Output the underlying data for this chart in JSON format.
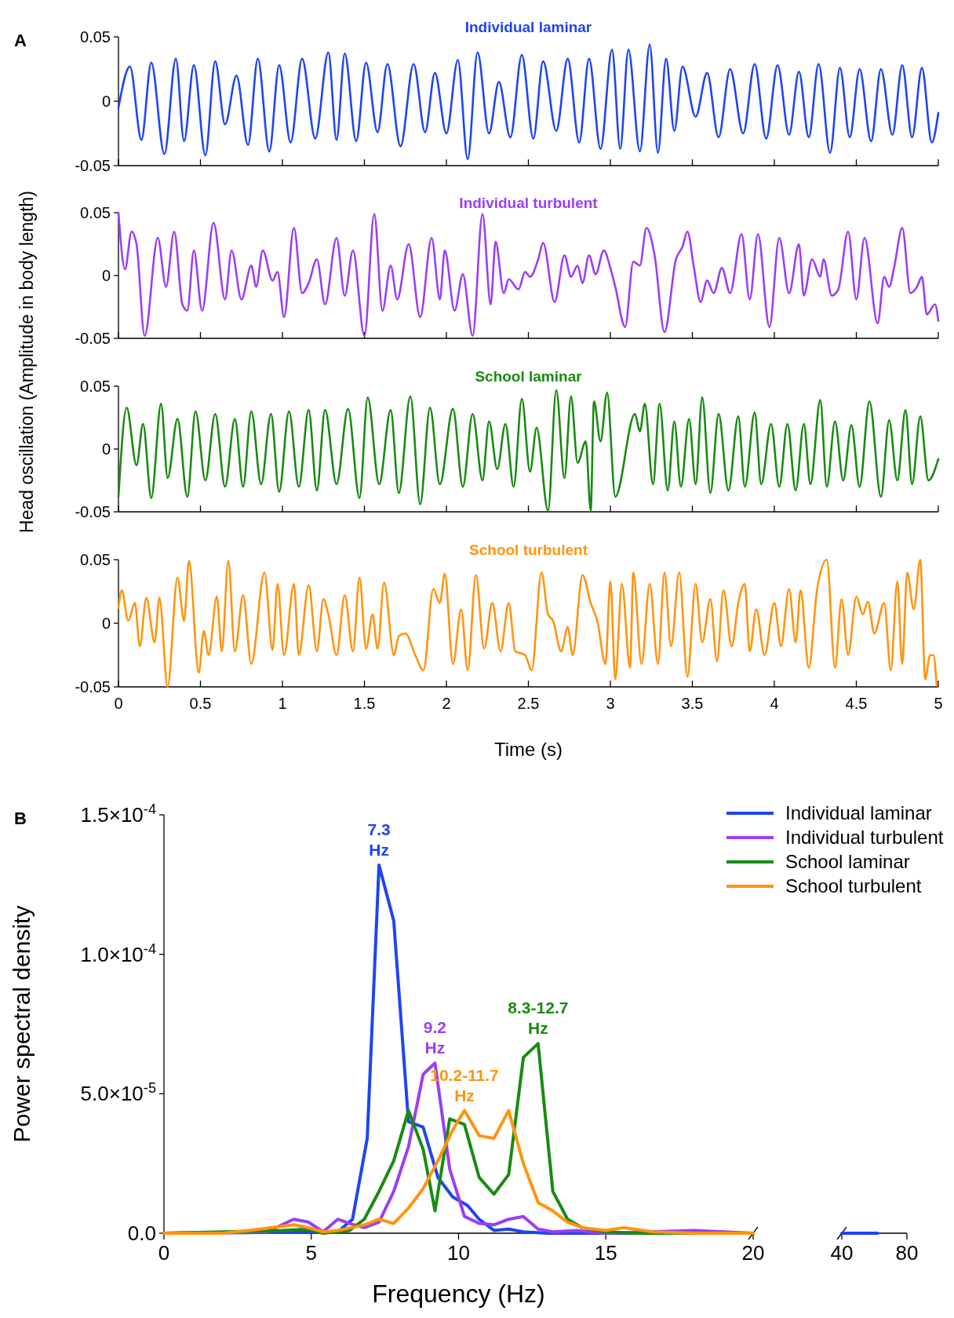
{
  "chart_data": [
    {
      "type": "line",
      "title": "Individual laminar",
      "ylabel": "Head oscillation (Amplitude in body length)",
      "annotations": [
        "A"
      ],
      "xlim": [
        0,
        5
      ],
      "xticks": [
        0,
        0.5,
        1,
        1.5,
        2,
        2.5,
        3,
        3.5,
        4,
        4.5,
        5
      ],
      "ylim": [
        -0.05,
        0.05
      ],
      "yticks": [
        -0.05,
        0,
        0.05
      ],
      "tick_labels": "y",
      "series": [
        {
          "color": "#1f45f0",
          "x": [
            0,
            0.07,
            0.14,
            0.2,
            0.28,
            0.35,
            0.4,
            0.46,
            0.53,
            0.59,
            0.65,
            0.72,
            0.79,
            0.85,
            0.92,
            0.98,
            1.05,
            1.12,
            1.2,
            1.28,
            1.33,
            1.38,
            1.45,
            1.51,
            1.58,
            1.64,
            1.72,
            1.8,
            1.87,
            1.93,
            2.0,
            2.07,
            2.13,
            2.19,
            2.26,
            2.32,
            2.39,
            2.46,
            2.53,
            2.59,
            2.67,
            2.74,
            2.81,
            2.87,
            2.94,
            3.01,
            3.06,
            3.11,
            3.18,
            3.24,
            3.29,
            3.34,
            3.39,
            3.44,
            3.52,
            3.59,
            3.66,
            3.73,
            3.81,
            3.88,
            3.95,
            4.02,
            4.09,
            4.15,
            4.21,
            4.27,
            4.34,
            4.4,
            4.46,
            4.52,
            4.59,
            4.65,
            4.72,
            4.78,
            4.84,
            4.9,
            4.96,
            5.0
          ],
          "values": [
            -0.005,
            0.027,
            -0.03,
            0.03,
            -0.041,
            0.033,
            -0.031,
            0.028,
            -0.042,
            0.031,
            -0.018,
            0.02,
            -0.034,
            0.033,
            -0.039,
            0.028,
            -0.032,
            0.033,
            -0.029,
            0.038,
            -0.03,
            0.037,
            -0.031,
            0.03,
            -0.024,
            0.029,
            -0.035,
            0.029,
            -0.024,
            0.022,
            -0.025,
            0.032,
            -0.045,
            0.038,
            -0.025,
            0.015,
            -0.028,
            0.036,
            -0.029,
            0.031,
            -0.023,
            0.033,
            -0.032,
            0.033,
            -0.037,
            0.04,
            -0.037,
            0.04,
            -0.039,
            0.044,
            -0.04,
            0.033,
            -0.023,
            0.027,
            -0.012,
            0.022,
            -0.028,
            0.025,
            -0.025,
            0.029,
            -0.029,
            0.028,
            -0.026,
            0.023,
            -0.028,
            0.029,
            -0.04,
            0.026,
            -0.028,
            0.025,
            -0.031,
            0.025,
            -0.026,
            0.028,
            -0.028,
            0.026,
            -0.032,
            -0.009
          ]
        }
      ]
    },
    {
      "type": "line",
      "title": "Individual turbulent",
      "xlim": [
        0,
        5
      ],
      "xticks": [
        0,
        0.5,
        1,
        1.5,
        2,
        2.5,
        3,
        3.5,
        4,
        4.5,
        5
      ],
      "ylim": [
        -0.05,
        0.05
      ],
      "yticks": [
        -0.05,
        0,
        0.05
      ],
      "tick_labels": "y",
      "series": [
        {
          "color": "#9b3ef5",
          "x": [
            0,
            0.04,
            0.08,
            0.11,
            0.16,
            0.24,
            0.29,
            0.34,
            0.39,
            0.42,
            0.46,
            0.51,
            0.58,
            0.65,
            0.69,
            0.75,
            0.81,
            0.84,
            0.88,
            0.94,
            0.97,
            1.01,
            1.07,
            1.12,
            1.16,
            1.21,
            1.26,
            1.33,
            1.38,
            1.43,
            1.5,
            1.56,
            1.61,
            1.66,
            1.7,
            1.77,
            1.84,
            1.91,
            1.96,
            1.99,
            2.05,
            2.1,
            2.16,
            2.22,
            2.27,
            2.3,
            2.35,
            2.38,
            2.44,
            2.48,
            2.51,
            2.56,
            2.59,
            2.66,
            2.72,
            2.76,
            2.8,
            2.83,
            2.87,
            2.91,
            2.96,
            3.0,
            3.03,
            3.09,
            3.14,
            3.18,
            3.22,
            3.27,
            3.33,
            3.4,
            3.44,
            3.47,
            3.51,
            3.55,
            3.59,
            3.63,
            3.68,
            3.73,
            3.8,
            3.85,
            3.9,
            3.97,
            4.03,
            4.09,
            4.15,
            4.18,
            4.23,
            4.28,
            4.3,
            4.35,
            4.39,
            4.45,
            4.5,
            4.55,
            4.63,
            4.67,
            4.7,
            4.73,
            4.78,
            4.83,
            4.87,
            4.9,
            4.93,
            4.98,
            5.0
          ],
          "values": [
            0.05,
            0.005,
            0.035,
            0.025,
            -0.048,
            0.03,
            -0.009,
            0.035,
            -0.023,
            -0.028,
            0.02,
            -0.028,
            0.042,
            -0.019,
            0.02,
            -0.019,
            0.008,
            -0.009,
            0.02,
            -0.004,
            0.003,
            -0.033,
            0.038,
            -0.014,
            -0.006,
            0.013,
            -0.023,
            0.03,
            -0.016,
            0.02,
            -0.048,
            0.049,
            -0.028,
            0.008,
            -0.019,
            0.025,
            -0.033,
            0.03,
            -0.019,
            0.02,
            -0.028,
            0.001,
            -0.048,
            0.049,
            -0.023,
            0.027,
            -0.014,
            -0.003,
            -0.011,
            0.003,
            -0.001,
            0.013,
            0.026,
            -0.021,
            0.016,
            -0.001,
            0.008,
            -0.006,
            0.016,
            0.001,
            0.02,
            0.006,
            -0.009,
            -0.041,
            0.011,
            0.008,
            0.038,
            0.016,
            -0.045,
            0.013,
            0.023,
            0.035,
            0.006,
            -0.021,
            -0.004,
            -0.014,
            0.006,
            -0.014,
            0.033,
            -0.019,
            0.033,
            -0.041,
            0.03,
            -0.014,
            0.025,
            -0.016,
            0.013,
            -0.001,
            0.013,
            -0.016,
            -0.011,
            0.035,
            -0.019,
            0.03,
            -0.038,
            -0.001,
            -0.009,
            0.006,
            0.038,
            -0.014,
            -0.009,
            -0.001,
            -0.031,
            -0.023,
            -0.036
          ]
        }
      ]
    },
    {
      "type": "line",
      "title": "School laminar",
      "xlim": [
        0,
        5
      ],
      "xticks": [
        0,
        0.5,
        1,
        1.5,
        2,
        2.5,
        3,
        3.5,
        4,
        4.5,
        5
      ],
      "ylim": [
        -0.05,
        0.05
      ],
      "yticks": [
        -0.05,
        0,
        0.05
      ],
      "tick_labels": "y",
      "series": [
        {
          "color": "#1a8a12",
          "x": [
            0,
            0.05,
            0.11,
            0.15,
            0.2,
            0.26,
            0.3,
            0.36,
            0.42,
            0.47,
            0.53,
            0.59,
            0.65,
            0.71,
            0.76,
            0.81,
            0.87,
            0.93,
            0.98,
            1.04,
            1.1,
            1.16,
            1.21,
            1.26,
            1.33,
            1.4,
            1.47,
            1.52,
            1.59,
            1.66,
            1.71,
            1.78,
            1.84,
            1.9,
            1.96,
            2.04,
            2.1,
            2.16,
            2.22,
            2.26,
            2.31,
            2.36,
            2.41,
            2.46,
            2.51,
            2.55,
            2.62,
            2.67,
            2.72,
            2.76,
            2.8,
            2.85,
            2.88,
            2.9,
            2.94,
            2.98,
            3.03,
            3.15,
            3.18,
            3.21,
            3.26,
            3.3,
            3.35,
            3.39,
            3.43,
            3.48,
            3.52,
            3.56,
            3.61,
            3.66,
            3.72,
            3.78,
            3.82,
            3.88,
            3.92,
            3.98,
            4.03,
            4.08,
            4.13,
            4.18,
            4.22,
            4.28,
            4.32,
            4.37,
            4.42,
            4.47,
            4.52,
            4.58,
            4.65,
            4.7,
            4.75,
            4.8,
            4.84,
            4.89,
            4.94,
            5.0
          ],
          "values": [
            -0.038,
            0.033,
            -0.013,
            0.02,
            -0.039,
            0.036,
            -0.023,
            0.024,
            -0.038,
            0.03,
            -0.025,
            0.028,
            -0.03,
            0.024,
            -0.03,
            0.03,
            -0.028,
            0.028,
            -0.034,
            0.03,
            -0.03,
            0.031,
            -0.033,
            0.031,
            -0.028,
            0.032,
            -0.039,
            0.041,
            -0.028,
            0.031,
            -0.035,
            0.042,
            -0.044,
            0.033,
            -0.028,
            0.032,
            -0.03,
            0.028,
            -0.025,
            0.022,
            -0.016,
            0.02,
            -0.03,
            0.04,
            -0.018,
            0.017,
            -0.049,
            0.047,
            -0.023,
            0.042,
            -0.011,
            0.006,
            -0.049,
            0.038,
            0.006,
            0.045,
            -0.038,
            0.028,
            0.014,
            0.036,
            -0.028,
            0.036,
            -0.033,
            0.022,
            -0.03,
            0.024,
            -0.028,
            0.041,
            -0.035,
            0.028,
            -0.033,
            0.026,
            -0.03,
            0.029,
            -0.028,
            0.02,
            -0.03,
            0.02,
            -0.033,
            0.02,
            -0.028,
            0.039,
            -0.03,
            0.022,
            -0.025,
            0.019,
            -0.03,
            0.038,
            -0.038,
            0.023,
            -0.025,
            0.031,
            -0.028,
            0.026,
            -0.025,
            -0.008
          ]
        }
      ]
    },
    {
      "type": "line",
      "title": "School turbulent",
      "xlabel": "Time (s)",
      "xlim": [
        0,
        5
      ],
      "xticks": [
        0,
        0.5,
        1,
        1.5,
        2,
        2.5,
        3,
        3.5,
        4,
        4.5,
        5
      ],
      "ylim": [
        -0.05,
        0.05
      ],
      "yticks": [
        -0.05,
        0,
        0.05
      ],
      "series": [
        {
          "color": "#ff9410",
          "x": [
            0,
            0.02,
            0.06,
            0.1,
            0.13,
            0.17,
            0.22,
            0.25,
            0.3,
            0.36,
            0.4,
            0.43,
            0.49,
            0.52,
            0.55,
            0.6,
            0.63,
            0.67,
            0.71,
            0.76,
            0.81,
            0.89,
            0.94,
            0.97,
            1.01,
            1.07,
            1.1,
            1.16,
            1.21,
            1.25,
            1.28,
            1.33,
            1.38,
            1.43,
            1.47,
            1.51,
            1.55,
            1.58,
            1.62,
            1.68,
            1.71,
            1.75,
            1.81,
            1.86,
            1.92,
            1.96,
            1.99,
            2.04,
            2.09,
            2.13,
            2.18,
            2.23,
            2.28,
            2.33,
            2.38,
            2.42,
            2.48,
            2.52,
            2.58,
            2.62,
            2.65,
            2.7,
            2.74,
            2.77,
            2.83,
            2.88,
            2.92,
            2.97,
            3.0,
            3.03,
            3.07,
            3.12,
            3.14,
            3.19,
            3.24,
            3.29,
            3.33,
            3.37,
            3.42,
            3.47,
            3.52,
            3.56,
            3.61,
            3.65,
            3.69,
            3.74,
            3.78,
            3.82,
            3.85,
            3.89,
            3.94,
            4.0,
            4.04,
            4.09,
            4.13,
            4.16,
            4.21,
            4.26,
            4.32,
            4.37,
            4.41,
            4.45,
            4.5,
            4.54,
            4.57,
            4.61,
            4.67,
            4.71,
            4.75,
            4.78,
            4.81,
            4.85,
            4.89,
            4.92,
            4.95,
            4.97,
            4.99
          ],
          "values": [
            0.012,
            0.026,
            0.002,
            0.016,
            -0.018,
            0.02,
            -0.015,
            0.02,
            -0.05,
            0.036,
            0.002,
            0.049,
            -0.039,
            -0.006,
            -0.025,
            0.021,
            -0.022,
            0.049,
            -0.022,
            0.022,
            -0.032,
            0.04,
            -0.021,
            0.031,
            -0.025,
            0.031,
            -0.025,
            0.03,
            -0.022,
            0.019,
            0.007,
            -0.025,
            0.022,
            -0.022,
            0.036,
            -0.02,
            0.007,
            -0.02,
            0.032,
            -0.025,
            -0.01,
            -0.008,
            -0.025,
            -0.037,
            0.027,
            0.016,
            0.039,
            -0.032,
            0.011,
            -0.037,
            0.038,
            -0.02,
            0.016,
            -0.022,
            0.016,
            -0.022,
            -0.025,
            -0.037,
            0.04,
            0.007,
            0.002,
            -0.022,
            -0.003,
            -0.025,
            0.038,
            0.016,
            0.002,
            -0.032,
            0.033,
            -0.044,
            0.031,
            -0.035,
            0.04,
            -0.032,
            0.031,
            -0.032,
            0.04,
            -0.018,
            0.04,
            -0.042,
            0.031,
            -0.015,
            0.019,
            -0.03,
            0.026,
            -0.018,
            0.016,
            0.031,
            -0.022,
            0.011,
            -0.025,
            0.016,
            -0.018,
            0.027,
            -0.015,
            0.026,
            -0.035,
            0.026,
            0.05,
            -0.035,
            0.019,
            -0.025,
            0.021,
            0.007,
            0.017,
            -0.008,
            0.016,
            -0.037,
            0.033,
            -0.032,
            0.04,
            0.011,
            0.05,
            -0.044,
            -0.025,
            -0.025,
            -0.049
          ]
        }
      ]
    },
    {
      "type": "line",
      "xlabel": "Frequency (Hz)",
      "ylabel": "Power spectral density",
      "legend": "top right",
      "annotations": [
        "B",
        {
          "text": "7.3 Hz",
          "x": 7.3,
          "y": 0.000132
        },
        {
          "text": "9.2 Hz",
          "x": 9.2,
          "y": 6.1e-05
        },
        {
          "text": "8.3-12.7 Hz",
          "x": 12.7,
          "y": 6.8e-05
        },
        {
          "text": "10.2-11.7 Hz",
          "x": 10.2,
          "y": 4.4e-05
        }
      ],
      "xlim": [
        0,
        20
      ],
      "xticks": [
        0,
        5,
        10,
        15,
        20
      ],
      "ylim": [
        0,
        0.00015
      ],
      "yticks": [
        {
          "value": 0,
          "label": "0.0"
        },
        {
          "value": 5e-05,
          "label": "5.0×10$^{-5}$"
        },
        {
          "value": 0.0001,
          "label": "1.0×10$^{-4}$"
        },
        {
          "value": 0.00015,
          "label": "1.5×10$^{-4}$"
        }
      ],
      "series": [
        {
          "name": "Individual laminar",
          "color": "#1f45f0",
          "x": [
            0,
            5.9,
            6.4,
            6.9,
            7.3,
            7.8,
            8.3,
            8.8,
            9.3,
            9.8,
            10.3,
            10.7,
            11.2,
            11.7,
            12.2,
            13,
            20
          ],
          "values": [
            0,
            5e-07,
            5e-06,
            3.4e-05,
            0.000132,
            0.000112,
            4e-05,
            3.8e-05,
            2e-05,
            1.3e-05,
            1e-05,
            5e-06,
            1e-06,
            1.5e-06,
            5e-07,
            0,
            0
          ]
        },
        {
          "name": "Individual turbulent",
          "color": "#9b3ef5",
          "x": [
            0,
            3.5,
            4.4,
            4.9,
            5.4,
            5.9,
            6.3,
            6.8,
            7.3,
            7.8,
            8.3,
            8.8,
            9.2,
            9.7,
            10.2,
            10.7,
            11.2,
            11.7,
            12.2,
            12.7,
            13.2,
            14,
            15,
            18,
            20
          ],
          "values": [
            0,
            5e-07,
            5e-06,
            4e-06,
            5e-07,
            5e-06,
            3.5e-06,
            2e-06,
            4e-06,
            1.5e-05,
            3.1e-05,
            5.7e-05,
            6.1e-05,
            2.3e-05,
            6e-06,
            3.5e-06,
            3e-06,
            5e-06,
            6e-06,
            1.5e-06,
            5e-07,
            1e-06,
            0,
            1e-06,
            0
          ]
        },
        {
          "name": "School laminar",
          "color": "#1a8a12",
          "x": [
            0,
            4,
            4.9,
            5.4,
            6.3,
            6.8,
            7.3,
            7.8,
            8.3,
            8.8,
            9.2,
            9.7,
            10.2,
            10.7,
            11.2,
            11.7,
            12.2,
            12.7,
            13.2,
            13.7,
            14.2,
            15,
            16,
            20
          ],
          "values": [
            0,
            1e-06,
            1.5e-06,
            0,
            1e-06,
            5e-06,
            1.5e-05,
            2.6e-05,
            4.4e-05,
            3e-05,
            8e-06,
            4.1e-05,
            3.9e-05,
            2e-05,
            1.4e-05,
            2.1e-05,
            6.3e-05,
            6.8e-05,
            1.5e-05,
            5e-06,
            2e-06,
            5e-07,
            0,
            0
          ]
        },
        {
          "name": "School turbulent",
          "color": "#ff9410",
          "x": [
            0,
            2,
            2.9,
            4.4,
            4.9,
            5.4,
            5.9,
            6.8,
            7.3,
            7.8,
            8.3,
            8.8,
            9.3,
            9.8,
            10.2,
            10.7,
            11.2,
            11.7,
            12.2,
            12.7,
            13.2,
            13.7,
            14.2,
            15,
            15.6,
            16.6,
            18,
            20
          ],
          "values": [
            0,
            0,
            1e-06,
            3e-06,
            2e-06,
            5e-07,
            1e-06,
            3e-06,
            5e-06,
            3.5e-06,
            9e-06,
            1.6e-05,
            2.6e-05,
            3.7e-05,
            4.4e-05,
            3.5e-05,
            3.4e-05,
            4.4e-05,
            2.5e-05,
            1.1e-05,
            8e-06,
            4e-06,
            2e-06,
            1e-06,
            2e-06,
            5e-07,
            0,
            0
          ]
        }
      ]
    },
    {
      "type": "line",
      "xlim": [
        40,
        80
      ],
      "xticks": [
        40,
        80
      ],
      "ylim": [
        0,
        0.00015
      ],
      "tick_labels": "x",
      "series": [
        {
          "color": "#1f45f0",
          "x": [
            40,
            62
          ],
          "values": [
            0,
            0
          ]
        }
      ]
    }
  ]
}
